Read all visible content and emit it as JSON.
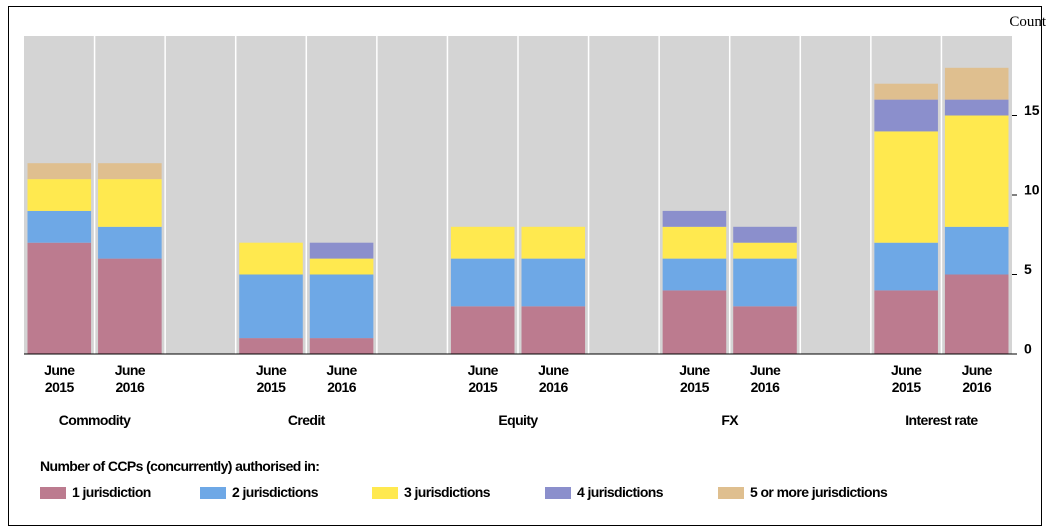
{
  "chart_data": {
    "type": "stacked_bar",
    "y_axis_label": "Count",
    "groups": [
      "Commodity",
      "Credit",
      "Equity",
      "FX",
      "Interest rate"
    ],
    "categories": [
      "June 2015",
      "June 2016",
      "June 2015",
      "June 2016",
      "June 2015",
      "June 2016",
      "June 2015",
      "June 2016",
      "June 2015",
      "June 2016"
    ],
    "legend_title": "Number of CCPs (concurrently) authorised in:",
    "series": [
      {
        "name": "1 jurisdiction",
        "color": "#bc7b8f",
        "values": [
          7,
          6,
          1,
          1,
          3,
          3,
          4,
          3,
          4,
          5
        ]
      },
      {
        "name": "2 jurisdictions",
        "color": "#6ea8e6",
        "values": [
          2,
          2,
          4,
          4,
          3,
          3,
          2,
          3,
          3,
          3
        ]
      },
      {
        "name": "3 jurisdictions",
        "color": "#ffe94f",
        "values": [
          2,
          3,
          2,
          1,
          2,
          2,
          2,
          1,
          7,
          7
        ]
      },
      {
        "name": "4 jurisdictions",
        "color": "#8b8fcc",
        "values": [
          0,
          0,
          0,
          1,
          0,
          0,
          1,
          1,
          2,
          1
        ]
      },
      {
        "name": "5 or more jurisdictions",
        "color": "#dfbf8f",
        "values": [
          1,
          1,
          0,
          0,
          0,
          0,
          0,
          0,
          1,
          2
        ]
      }
    ],
    "ylim": [
      0,
      20
    ],
    "yticks": [
      0,
      5,
      10,
      15
    ]
  }
}
